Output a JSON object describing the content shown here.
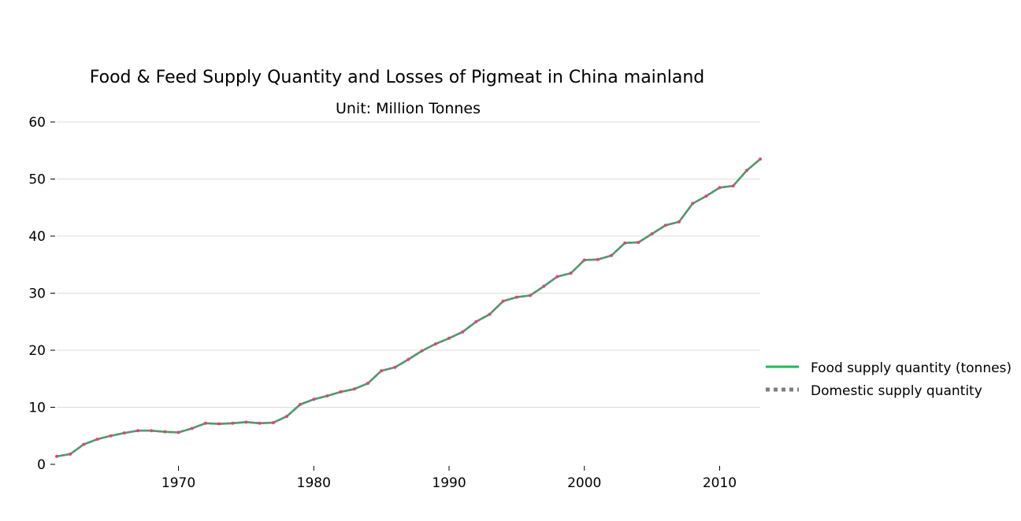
{
  "chart_data": {
    "type": "line",
    "title": "Food & Feed Supply Quantity and Losses of Pigmeat in China mainland",
    "subtitle": "Unit: Million Tonnes",
    "xlabel": "",
    "ylabel": "",
    "xlim": [
      1961,
      2013
    ],
    "ylim": [
      0,
      60
    ],
    "x_ticks": [
      "1970",
      "1980",
      "1990",
      "2000",
      "2010"
    ],
    "y_ticks": [
      "0",
      "10",
      "20",
      "30",
      "40",
      "50",
      "60"
    ],
    "grid": "horizontal",
    "legend_position": "right",
    "x": [
      1961,
      1962,
      1963,
      1964,
      1965,
      1966,
      1967,
      1968,
      1969,
      1970,
      1971,
      1972,
      1973,
      1974,
      1975,
      1976,
      1977,
      1978,
      1979,
      1980,
      1981,
      1982,
      1983,
      1984,
      1985,
      1986,
      1987,
      1988,
      1989,
      1990,
      1991,
      1992,
      1993,
      1994,
      1995,
      1996,
      1997,
      1998,
      1999,
      2000,
      2001,
      2002,
      2003,
      2004,
      2005,
      2006,
      2007,
      2008,
      2009,
      2010,
      2011,
      2012,
      2013
    ],
    "series": [
      {
        "name": "Food supply quantity (tonnes)",
        "color": "#1db954",
        "style": "solid",
        "values": [
          1.4,
          1.8,
          3.5,
          4.4,
          5.0,
          5.5,
          5.9,
          5.9,
          5.7,
          5.6,
          6.3,
          7.2,
          7.1,
          7.2,
          7.4,
          7.2,
          7.3,
          8.4,
          10.5,
          11.4,
          12.0,
          12.7,
          13.2,
          14.2,
          16.4,
          17.0,
          18.4,
          19.9,
          21.1,
          22.1,
          23.2,
          25.0,
          26.3,
          28.6,
          29.3,
          29.6,
          31.2,
          32.9,
          33.5,
          35.8,
          35.9,
          36.6,
          38.8,
          38.9,
          40.4,
          41.9,
          42.5,
          45.7,
          47.0,
          48.5,
          48.8,
          51.5,
          53.5
        ]
      },
      {
        "name": "Domestic supply quantity",
        "color": "#7f7f7f",
        "style": "dotted",
        "values": [
          1.4,
          1.8,
          3.5,
          4.4,
          5.0,
          5.5,
          5.9,
          5.9,
          5.7,
          5.6,
          6.3,
          7.2,
          7.1,
          7.2,
          7.4,
          7.2,
          7.3,
          8.4,
          10.5,
          11.4,
          12.0,
          12.7,
          13.2,
          14.2,
          16.4,
          17.0,
          18.4,
          19.9,
          21.1,
          22.1,
          23.2,
          25.0,
          26.3,
          28.6,
          29.3,
          29.6,
          31.2,
          32.9,
          33.5,
          35.8,
          35.9,
          36.6,
          38.8,
          38.9,
          40.4,
          41.9,
          42.5,
          45.7,
          47.0,
          48.5,
          48.8,
          51.5,
          53.5
        ]
      }
    ],
    "point_color": "#e0457b"
  }
}
